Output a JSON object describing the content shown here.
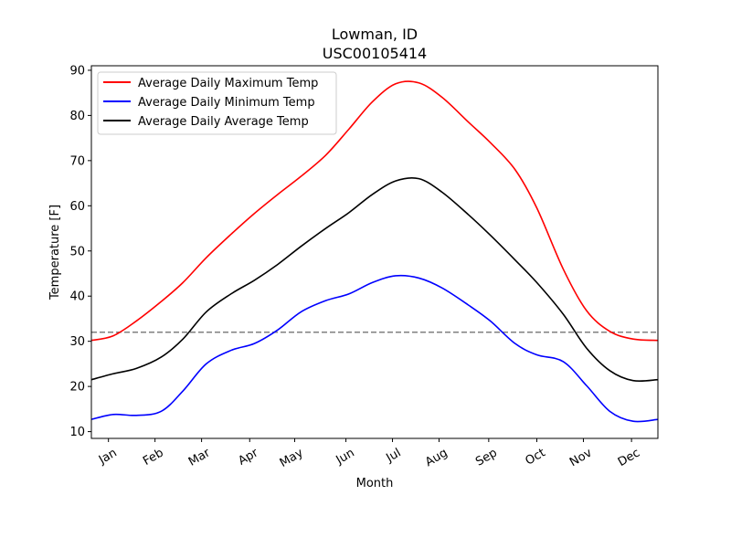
{
  "chart_data": {
    "type": "line",
    "title": "Lowman, ID",
    "subtitle": "USC00105414",
    "xlabel": "Month",
    "ylabel": "Temperature [F]",
    "ylim": [
      8.5,
      91
    ],
    "yticks": [
      10,
      20,
      30,
      40,
      50,
      60,
      70,
      80,
      90
    ],
    "xlim": [
      1,
      366
    ],
    "x_tick_labels": [
      "Jan",
      "Feb",
      "Mar",
      "Apr",
      "May",
      "Jun",
      "Jul",
      "Aug",
      "Sep",
      "Oct",
      "Nov",
      "Dec"
    ],
    "x_tick_days": [
      12,
      42,
      72,
      103,
      132,
      165,
      195,
      225,
      257,
      288,
      318,
      349
    ],
    "legend_position": "top-left",
    "grid": false,
    "reference_line": {
      "y": 32,
      "color": "#808080",
      "style": "dashed"
    },
    "x": [
      1,
      15,
      30,
      46,
      60,
      75,
      91,
      106,
      121,
      136,
      152,
      167,
      182,
      197,
      212,
      227,
      244,
      258,
      274,
      288,
      305,
      320,
      335,
      350,
      366
    ],
    "series": [
      {
        "name": "Average Daily Maximum Temp",
        "color": "#ff0000",
        "values": [
          30.2,
          31.2,
          34.5,
          38.8,
          43.0,
          48.5,
          53.7,
          58.3,
          62.5,
          66.5,
          71.2,
          77.0,
          83.0,
          87.0,
          87.2,
          84.0,
          78.5,
          74.0,
          68.0,
          59.5,
          46.0,
          36.8,
          32.2,
          30.5,
          30.2
        ]
      },
      {
        "name": "Average Daily Minimum Temp",
        "color": "#0000ff",
        "values": [
          12.7,
          13.8,
          13.6,
          14.5,
          19.0,
          25.0,
          28.0,
          29.5,
          32.5,
          36.5,
          39.0,
          40.5,
          43.0,
          44.5,
          44.0,
          41.8,
          38.0,
          34.5,
          29.5,
          27.0,
          25.5,
          20.2,
          14.5,
          12.3,
          12.7
        ]
      },
      {
        "name": "Average Daily Average Temp",
        "color": "#000000",
        "values": [
          21.5,
          22.8,
          24.0,
          26.5,
          30.5,
          36.5,
          40.5,
          43.5,
          47.0,
          51.0,
          55.0,
          58.5,
          62.5,
          65.5,
          66.0,
          63.0,
          58.0,
          53.5,
          48.0,
          43.0,
          36.0,
          28.5,
          23.5,
          21.3,
          21.5
        ]
      }
    ]
  }
}
